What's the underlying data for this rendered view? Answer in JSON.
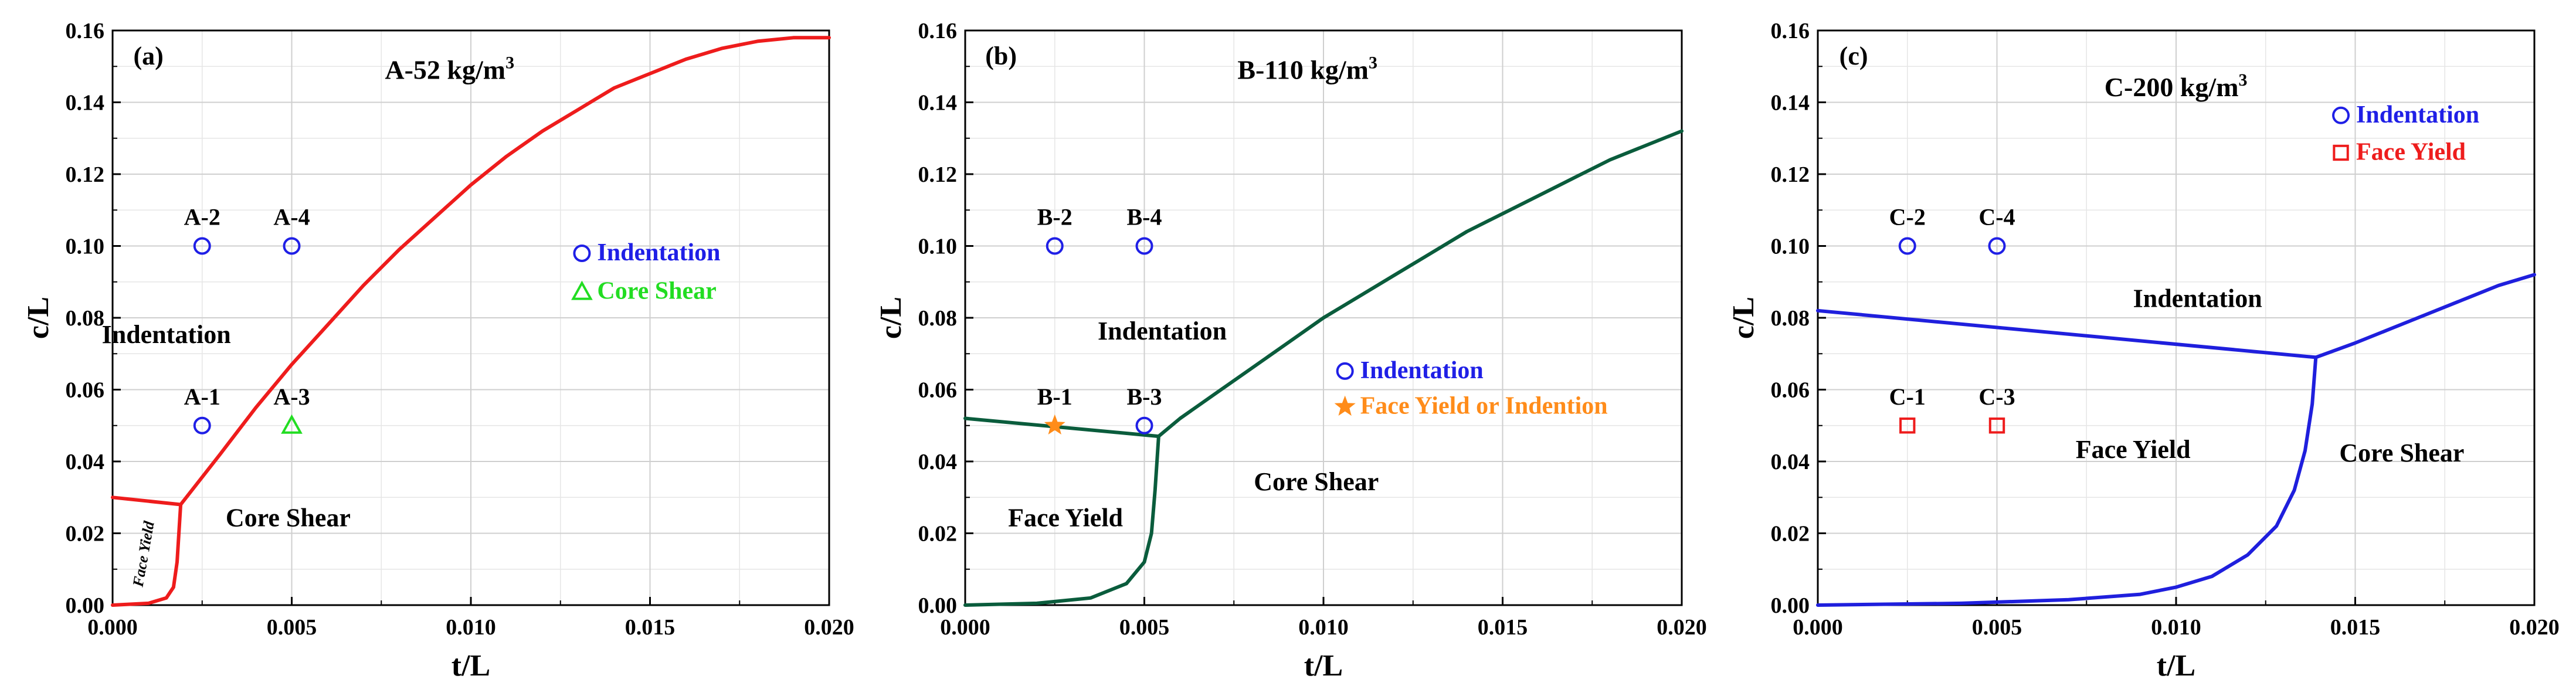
{
  "chart_data": [
    {
      "type": "line",
      "panel_label": "(a)",
      "title": "A-52 kg/m",
      "title_sup": "3",
      "xlabel": "t/L",
      "ylabel": "c/L",
      "xlim": [
        0,
        0.02
      ],
      "ylim": [
        0,
        0.16
      ],
      "xticks": [
        0.0,
        0.005,
        0.01,
        0.015,
        0.02
      ],
      "xtick_labels": [
        "0.000",
        "0.005",
        "0.010",
        "0.015",
        "0.020"
      ],
      "yticks": [
        0.0,
        0.02,
        0.04,
        0.06,
        0.08,
        0.1,
        0.12,
        0.14,
        0.16
      ],
      "ytick_labels": [
        "0.00",
        "0.02",
        "0.04",
        "0.06",
        "0.08",
        "0.10",
        "0.12",
        "0.14",
        "0.16"
      ],
      "line_color": "#ee1c1c",
      "series": [
        {
          "name": "Face Yield / Indentation boundary",
          "x": [
            0,
            0.0019
          ],
          "y": [
            0.03,
            0.028
          ]
        },
        {
          "name": "Indentation / Core Shear boundary",
          "x": [
            0.0019,
            0.003,
            0.004,
            0.005,
            0.006,
            0.007,
            0.008,
            0.009,
            0.01,
            0.011,
            0.012,
            0.013,
            0.014,
            0.015,
            0.016,
            0.017,
            0.018,
            0.019,
            0.02
          ],
          "y": [
            0.028,
            0.042,
            0.055,
            0.067,
            0.078,
            0.089,
            0.099,
            0.108,
            0.117,
            0.125,
            0.132,
            0.138,
            0.144,
            0.148,
            0.152,
            0.155,
            0.157,
            0.158,
            0.158
          ]
        },
        {
          "name": "Face Yield / Core Shear boundary",
          "x": [
            0,
            0.001,
            0.0015,
            0.0017,
            0.0018,
            0.0019
          ],
          "y": [
            0,
            0.0005,
            0.002,
            0.005,
            0.012,
            0.028
          ]
        }
      ],
      "points": [
        {
          "label": "A-1",
          "x": 0.0025,
          "y": 0.05,
          "marker": "circle",
          "color": "#1f1fe6"
        },
        {
          "label": "A-2",
          "x": 0.0025,
          "y": 0.1,
          "marker": "circle",
          "color": "#1f1fe6"
        },
        {
          "label": "A-3",
          "x": 0.005,
          "y": 0.05,
          "marker": "triangle",
          "color": "#22dd22"
        },
        {
          "label": "A-4",
          "x": 0.005,
          "y": 0.1,
          "marker": "circle",
          "color": "#1f1fe6"
        }
      ],
      "regions": [
        {
          "text": "Indentation",
          "x": 0.0015,
          "y": 0.073,
          "rotate": 0
        },
        {
          "text": "Core Shear",
          "x": 0.0049,
          "y": 0.022,
          "rotate": 0
        },
        {
          "text": "Face Yield",
          "x": 0.001,
          "y": 0.014,
          "rotate": -80,
          "small": true
        }
      ],
      "legend": [
        {
          "label": "Indentation",
          "marker": "circle",
          "color": "#1f1fe6"
        },
        {
          "label": "Core Shear",
          "marker": "triangle",
          "color": "#22dd22"
        }
      ]
    },
    {
      "type": "line",
      "panel_label": "(b)",
      "title": "B-110 kg/m",
      "title_sup": "3",
      "xlabel": "t/L",
      "ylabel": "c/L",
      "xlim": [
        0,
        0.02
      ],
      "ylim": [
        0,
        0.16
      ],
      "xticks": [
        0.0,
        0.005,
        0.01,
        0.015,
        0.02
      ],
      "xtick_labels": [
        "0.000",
        "0.005",
        "0.010",
        "0.015",
        "0.020"
      ],
      "yticks": [
        0.0,
        0.02,
        0.04,
        0.06,
        0.08,
        0.1,
        0.12,
        0.14,
        0.16
      ],
      "ytick_labels": [
        "0.00",
        "0.02",
        "0.04",
        "0.06",
        "0.08",
        "0.10",
        "0.12",
        "0.14",
        "0.16"
      ],
      "line_color": "#0a5c3c",
      "series": [
        {
          "name": "Face Yield / Indentation boundary",
          "x": [
            0,
            0.0054
          ],
          "y": [
            0.052,
            0.047
          ]
        },
        {
          "name": "Indentation / Core Shear boundary",
          "x": [
            0.0054,
            0.006,
            0.007,
            0.008,
            0.009,
            0.01,
            0.011,
            0.012,
            0.013,
            0.014,
            0.015,
            0.016,
            0.017,
            0.018,
            0.019,
            0.02
          ],
          "y": [
            0.047,
            0.052,
            0.059,
            0.066,
            0.073,
            0.08,
            0.086,
            0.092,
            0.098,
            0.104,
            0.109,
            0.114,
            0.119,
            0.124,
            0.128,
            0.132
          ]
        },
        {
          "name": "Face Yield / Core Shear boundary",
          "x": [
            0,
            0.002,
            0.0035,
            0.0045,
            0.005,
            0.0052,
            0.0053,
            0.0054
          ],
          "y": [
            0,
            0.0005,
            0.002,
            0.006,
            0.012,
            0.02,
            0.032,
            0.047
          ]
        }
      ],
      "points": [
        {
          "label": "B-1",
          "x": 0.0025,
          "y": 0.05,
          "marker": "star",
          "color": "#ff8c1a"
        },
        {
          "label": "B-2",
          "x": 0.0025,
          "y": 0.1,
          "marker": "circle",
          "color": "#1f1fe6"
        },
        {
          "label": "B-3",
          "x": 0.005,
          "y": 0.05,
          "marker": "circle",
          "color": "#1f1fe6"
        },
        {
          "label": "B-4",
          "x": 0.005,
          "y": 0.1,
          "marker": "circle",
          "color": "#1f1fe6"
        }
      ],
      "regions": [
        {
          "text": "Indentation",
          "x": 0.0055,
          "y": 0.074,
          "rotate": 0
        },
        {
          "text": "Core Shear",
          "x": 0.0098,
          "y": 0.032,
          "rotate": 0
        },
        {
          "text": "Face Yield",
          "x": 0.0028,
          "y": 0.022,
          "rotate": 0
        }
      ],
      "legend": [
        {
          "label": "Indentation",
          "marker": "circle",
          "color": "#1f1fe6"
        },
        {
          "label": "Face Yield or Indention",
          "marker": "star",
          "color": "#ff8c1a"
        }
      ]
    },
    {
      "type": "line",
      "panel_label": "(c)",
      "title": "C-200 kg/m",
      "title_sup": "3",
      "xlabel": "t/L",
      "ylabel": "c/L",
      "xlim": [
        0,
        0.02
      ],
      "ylim": [
        0,
        0.16
      ],
      "xticks": [
        0.0,
        0.005,
        0.01,
        0.015,
        0.02
      ],
      "xtick_labels": [
        "0.000",
        "0.005",
        "0.010",
        "0.015",
        "0.020"
      ],
      "yticks": [
        0.0,
        0.02,
        0.04,
        0.06,
        0.08,
        0.1,
        0.12,
        0.14,
        0.16
      ],
      "ytick_labels": [
        "0.00",
        "0.02",
        "0.04",
        "0.06",
        "0.08",
        "0.10",
        "0.12",
        "0.14",
        "0.16"
      ],
      "line_color": "#1f1fdd",
      "series": [
        {
          "name": "Face Yield / Indentation boundary",
          "x": [
            0,
            0.0139
          ],
          "y": [
            0.082,
            0.069
          ]
        },
        {
          "name": "Indentation / Core Shear boundary",
          "x": [
            0.0139,
            0.015,
            0.016,
            0.017,
            0.018,
            0.019,
            0.02
          ],
          "y": [
            0.069,
            0.073,
            0.077,
            0.081,
            0.085,
            0.089,
            0.092
          ]
        },
        {
          "name": "Face Yield / Core Shear boundary",
          "x": [
            0,
            0.004,
            0.007,
            0.009,
            0.01,
            0.011,
            0.012,
            0.0128,
            0.0133,
            0.0136,
            0.0138,
            0.0139
          ],
          "y": [
            0,
            0.0005,
            0.0015,
            0.003,
            0.005,
            0.008,
            0.014,
            0.022,
            0.032,
            0.043,
            0.056,
            0.069
          ]
        }
      ],
      "points": [
        {
          "label": "C-1",
          "x": 0.0025,
          "y": 0.05,
          "marker": "square",
          "color": "#ee1c1c"
        },
        {
          "label": "C-2",
          "x": 0.0025,
          "y": 0.1,
          "marker": "circle",
          "color": "#1f1fe6"
        },
        {
          "label": "C-3",
          "x": 0.005,
          "y": 0.05,
          "marker": "square",
          "color": "#ee1c1c"
        },
        {
          "label": "C-4",
          "x": 0.005,
          "y": 0.1,
          "marker": "circle",
          "color": "#1f1fe6"
        }
      ],
      "regions": [
        {
          "text": "Indentation",
          "x": 0.0106,
          "y": 0.083,
          "rotate": 0
        },
        {
          "text": "Core Shear",
          "x": 0.0163,
          "y": 0.04,
          "rotate": 0
        },
        {
          "text": "Face Yield",
          "x": 0.0088,
          "y": 0.041,
          "rotate": 0
        }
      ],
      "legend": [
        {
          "label": "Indentation",
          "marker": "circle",
          "color": "#1f1fe6"
        },
        {
          "label": "Face Yield",
          "marker": "square",
          "color": "#ee1c1c"
        }
      ]
    }
  ]
}
